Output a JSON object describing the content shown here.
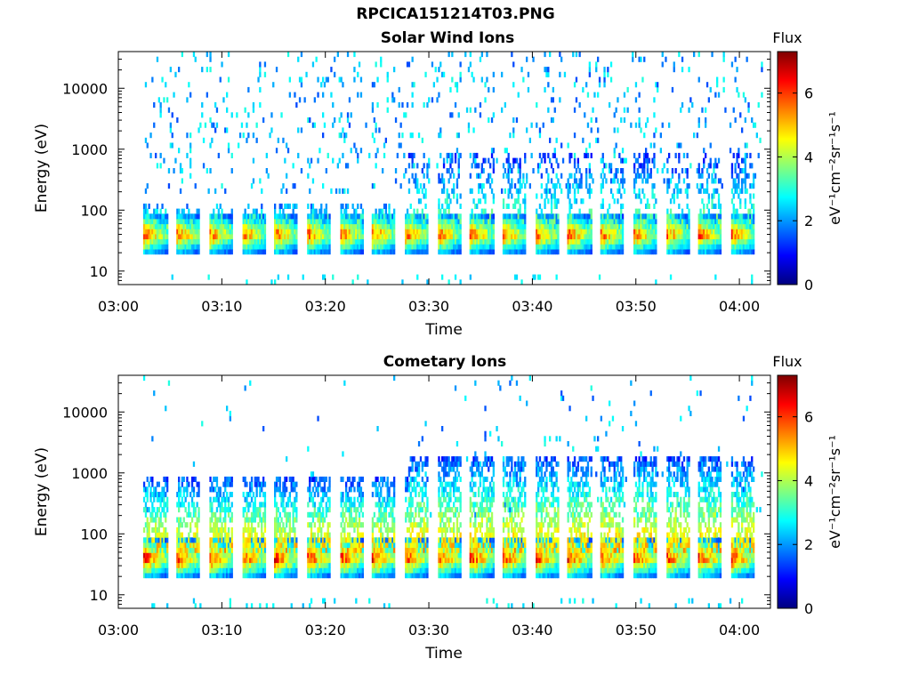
{
  "figure": {
    "title": "RPCICA151214T03.PNG"
  },
  "chart_data": [
    {
      "type": "heatmap",
      "title": "Solar Wind Ions",
      "xlabel": "Time",
      "ylabel": "Energy (eV)",
      "x_ticks": [
        "03:00",
        "03:10",
        "03:20",
        "03:30",
        "03:40",
        "03:50",
        "04:00"
      ],
      "y_ticks": [
        "10",
        "100",
        "1000",
        "10000"
      ],
      "y_scale": "log",
      "ylim": [
        6,
        40000
      ],
      "xlim_minutes": [
        0,
        63
      ],
      "colorbar": {
        "label": "Flux",
        "unit_label": "eV⁻¹cm⁻²sr⁻¹s⁻¹",
        "ticks": [
          "0",
          "2",
          "4",
          "6"
        ],
        "range": [
          0,
          7.3
        ],
        "colormap": "jet"
      },
      "scan_period_minutes": 3.15,
      "first_scan_minute": 2.4,
      "core_energy_eV": 40,
      "peak_flux": 6.8
    },
    {
      "type": "heatmap",
      "title": "Cometary Ions",
      "xlabel": "Time",
      "ylabel": "Energy (eV)",
      "x_ticks": [
        "03:00",
        "03:10",
        "03:20",
        "03:30",
        "03:40",
        "03:50",
        "04:00"
      ],
      "y_ticks": [
        "10",
        "100",
        "1000",
        "10000"
      ],
      "y_scale": "log",
      "ylim": [
        6,
        40000
      ],
      "xlim_minutes": [
        0,
        63
      ],
      "colorbar": {
        "label": "Flux",
        "unit_label": "eV⁻¹cm⁻²sr⁻¹s⁻¹",
        "ticks": [
          "0",
          "2",
          "4",
          "6"
        ],
        "range": [
          0,
          7.3
        ],
        "colormap": "jet"
      },
      "scan_period_minutes": 3.15,
      "first_scan_minute": 2.4,
      "core_energy_eV": 40,
      "peak_flux": 7.2
    }
  ]
}
